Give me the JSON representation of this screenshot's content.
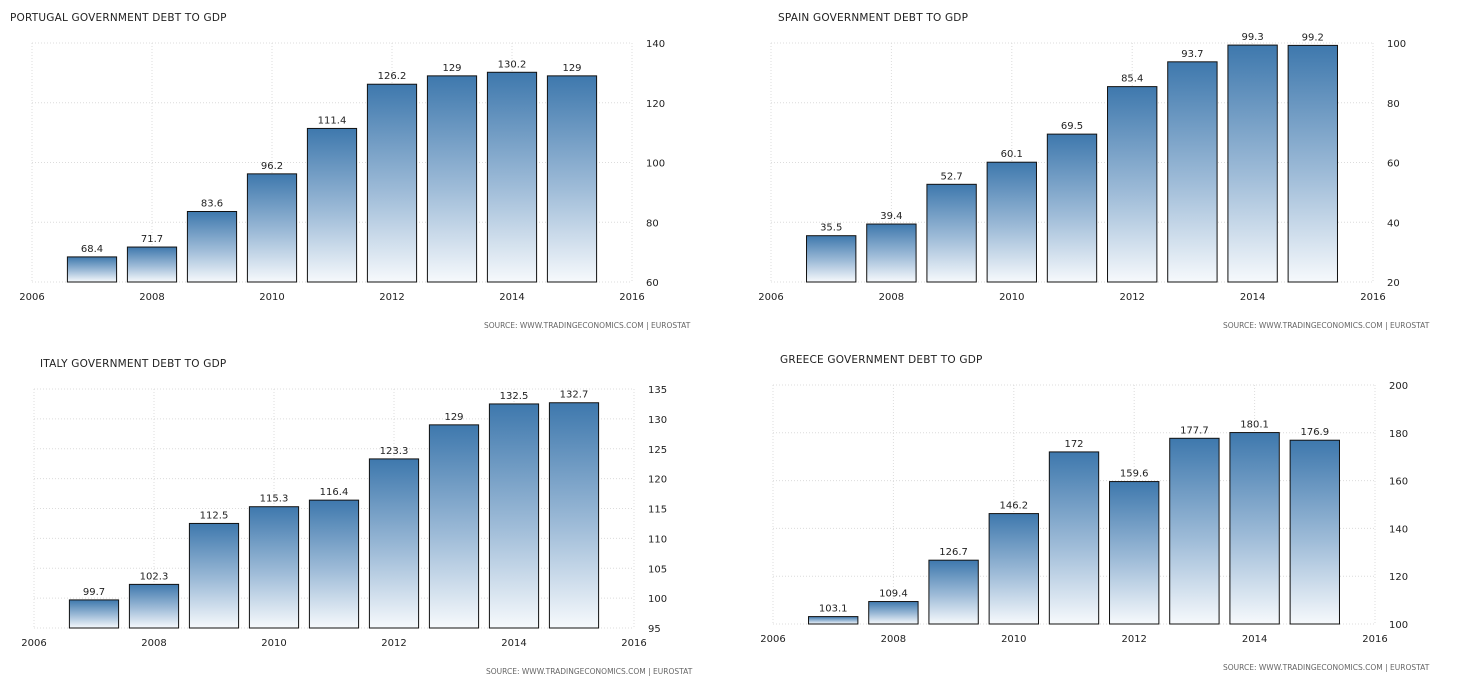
{
  "chart_data": [
    {
      "type": "bar",
      "title": "PORTUGAL GOVERNMENT DEBT TO GDP",
      "source": "SOURCE: WWW.TRADINGECONOMICS.COM | EUROSTAT",
      "categories": [
        "2007",
        "2008",
        "2009",
        "2010",
        "2011",
        "2012",
        "2013",
        "2014",
        "2015"
      ],
      "values": [
        68.4,
        71.7,
        83.6,
        96.2,
        111.4,
        126.2,
        129,
        130.2,
        129
      ],
      "value_labels": [
        "68.4",
        "71.7",
        "83.6",
        "96.2",
        "111.4",
        "126.2",
        "129",
        "130.2",
        "129"
      ],
      "xlim": [
        2006,
        2016
      ],
      "ylim": [
        60,
        140
      ],
      "xticks": [
        "2006",
        "2008",
        "2010",
        "2012",
        "2014",
        "2016"
      ],
      "yticks": [
        "60",
        "80",
        "100",
        "120",
        "140"
      ],
      "xlabel": "",
      "ylabel": "",
      "grid": true
    },
    {
      "type": "bar",
      "title": "SPAIN GOVERNMENT DEBT TO GDP",
      "source": "SOURCE: WWW.TRADINGECONOMICS.COM | EUROSTAT",
      "categories": [
        "2007",
        "2008",
        "2009",
        "2010",
        "2011",
        "2012",
        "2013",
        "2014",
        "2015"
      ],
      "values": [
        35.5,
        39.4,
        52.7,
        60.1,
        69.5,
        85.4,
        93.7,
        99.3,
        99.2
      ],
      "value_labels": [
        "35.5",
        "39.4",
        "52.7",
        "60.1",
        "69.5",
        "85.4",
        "93.7",
        "99.3",
        "99.2"
      ],
      "xlim": [
        2006,
        2016
      ],
      "ylim": [
        20,
        100
      ],
      "xticks": [
        "2006",
        "2008",
        "2010",
        "2012",
        "2014",
        "2016"
      ],
      "yticks": [
        "20",
        "40",
        "60",
        "80",
        "100"
      ],
      "xlabel": "",
      "ylabel": "",
      "grid": true
    },
    {
      "type": "bar",
      "title": "ITALY GOVERNMENT DEBT TO GDP",
      "source": "SOURCE: WWW.TRADINGECONOMICS.COM | EUROSTAT",
      "categories": [
        "2007",
        "2008",
        "2009",
        "2010",
        "2011",
        "2012",
        "2013",
        "2014",
        "2015"
      ],
      "values": [
        99.7,
        102.3,
        112.5,
        115.3,
        116.4,
        123.3,
        129,
        132.5,
        132.7
      ],
      "value_labels": [
        "99.7",
        "102.3",
        "112.5",
        "115.3",
        "116.4",
        "123.3",
        "129",
        "132.5",
        "132.7"
      ],
      "xlim": [
        2006,
        2016
      ],
      "ylim": [
        95,
        135
      ],
      "xticks": [
        "2006",
        "2008",
        "2010",
        "2012",
        "2014",
        "2016"
      ],
      "yticks": [
        "95",
        "100",
        "105",
        "110",
        "115",
        "120",
        "125",
        "130",
        "135"
      ],
      "xlabel": "",
      "ylabel": "",
      "grid": true
    },
    {
      "type": "bar",
      "title": "GREECE GOVERNMENT DEBT TO GDP",
      "source": "SOURCE: WWW.TRADINGECONOMICS.COM | EUROSTAT",
      "categories": [
        "2007",
        "2008",
        "2009",
        "2010",
        "2011",
        "2012",
        "2013",
        "2014",
        "2015"
      ],
      "values": [
        103.1,
        109.4,
        126.7,
        146.2,
        172,
        159.6,
        177.7,
        180.1,
        176.9
      ],
      "value_labels": [
        "103.1",
        "109.4",
        "126.7",
        "146.2",
        "172",
        "159.6",
        "177.7",
        "180.1",
        "176.9"
      ],
      "xlim": [
        2006,
        2016
      ],
      "ylim": [
        100,
        200
      ],
      "xticks": [
        "2006",
        "2008",
        "2010",
        "2012",
        "2014",
        "2016"
      ],
      "yticks": [
        "100",
        "120",
        "140",
        "160",
        "180",
        "200"
      ],
      "xlabel": "",
      "ylabel": "",
      "grid": true
    }
  ]
}
